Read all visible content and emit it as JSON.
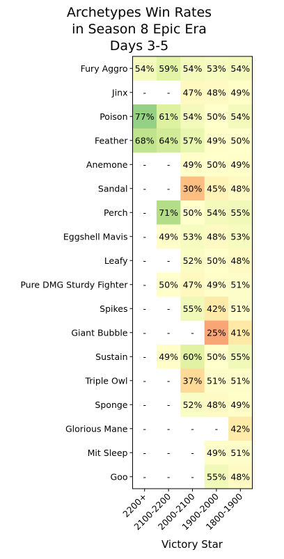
{
  "chart_data": {
    "type": "heatmap",
    "title": [
      "Archetypes Win Rates",
      "in Season 8 Epic Era",
      "Days 3-5"
    ],
    "xlabel": "Victory Star",
    "ylabel": "",
    "columns": [
      "2200+",
      "2100-2200",
      "2000-2100",
      "1900-2000",
      "1800-1900"
    ],
    "rows": [
      "Fury Aggro",
      "Jinx",
      "Poison",
      "Feather",
      "Anemone",
      "Sandal",
      "Perch",
      "Eggshell Mavis",
      "Leafy",
      "Pure DMG Sturdy Fighter",
      "Spikes",
      "Giant Bubble",
      "Sustain",
      "Triple Owl",
      "Sponge",
      "Glorious Mane",
      "Mit Sleep",
      "Goo"
    ],
    "values": [
      [
        54,
        59,
        54,
        53,
        54
      ],
      [
        null,
        null,
        47,
        48,
        49
      ],
      [
        77,
        61,
        54,
        50,
        54
      ],
      [
        68,
        64,
        57,
        49,
        50
      ],
      [
        null,
        null,
        49,
        50,
        49
      ],
      [
        null,
        null,
        30,
        45,
        48
      ],
      [
        null,
        71,
        50,
        54,
        55
      ],
      [
        null,
        49,
        53,
        48,
        53
      ],
      [
        null,
        null,
        52,
        50,
        48
      ],
      [
        null,
        50,
        47,
        49,
        51
      ],
      [
        null,
        null,
        55,
        42,
        51
      ],
      [
        null,
        null,
        null,
        25,
        41
      ],
      [
        null,
        49,
        60,
        50,
        55
      ],
      [
        null,
        null,
        37,
        51,
        51
      ],
      [
        null,
        null,
        52,
        48,
        49
      ],
      [
        null,
        null,
        null,
        null,
        42
      ],
      [
        null,
        null,
        null,
        49,
        51
      ],
      [
        null,
        null,
        null,
        55,
        48
      ]
    ],
    "missing_label": "-",
    "value_suffix": "%",
    "colormap": "RdYlGn",
    "color_range": [
      0,
      100
    ]
  }
}
